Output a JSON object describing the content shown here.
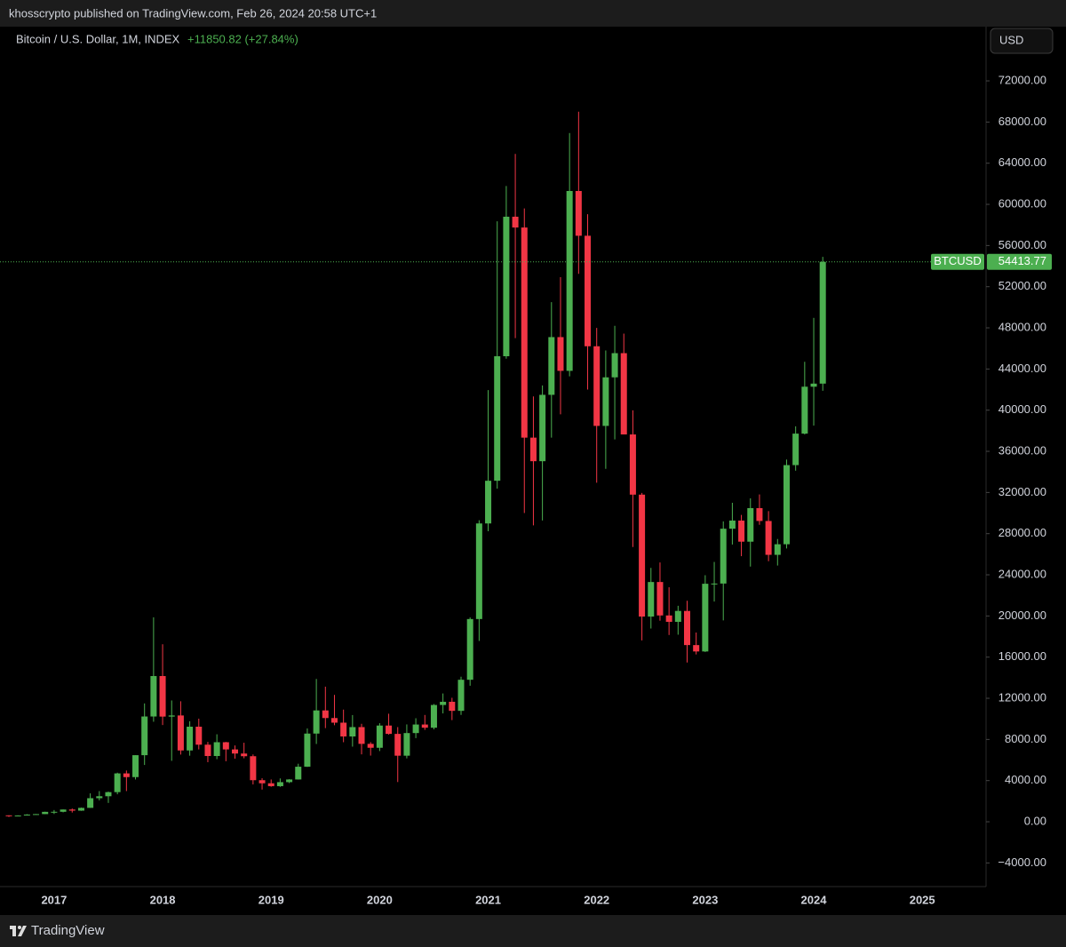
{
  "header": {
    "publisher_line": "khosscrypto published on TradingView.com, Feb 26, 2024 20:58 UTC+1"
  },
  "footer": {
    "brand": "TradingView"
  },
  "currency_button": "USD",
  "chart_data": {
    "type": "candlestick",
    "title": "Bitcoin / U.S. Dollar, 1M, INDEX",
    "change": "+11850.82 (+27.84%)",
    "symbol": "BTCUSD",
    "up_color": "#4caf50",
    "down_color": "#f23645",
    "categories": [
      null,
      null,
      null,
      null,
      null,
      "2017",
      null,
      null,
      null,
      null,
      null,
      null,
      null,
      null,
      null,
      null,
      null,
      "2018",
      null,
      null,
      null,
      null,
      null,
      null,
      null,
      null,
      null,
      null,
      null,
      "2019",
      null,
      null,
      null,
      null,
      null,
      null,
      null,
      null,
      null,
      null,
      null,
      "2020",
      null,
      null,
      null,
      null,
      null,
      null,
      null,
      null,
      null,
      null,
      null,
      "2021",
      null,
      null,
      null,
      null,
      null,
      null,
      null,
      null,
      null,
      null,
      null,
      "2022",
      null,
      null,
      null,
      null,
      null,
      null,
      null,
      null,
      null,
      null,
      null,
      "2023",
      null,
      null,
      null,
      null,
      null,
      null,
      null,
      null,
      null,
      null,
      null,
      "2024",
      null,
      null,
      null,
      null,
      null,
      null,
      null,
      null,
      null,
      null,
      null,
      "2025",
      null,
      null,
      null,
      null,
      null,
      null
    ],
    "open": [
      624,
      573,
      609,
      701,
      745,
      964,
      970,
      1190,
      1080,
      1350,
      2290,
      2480,
      2880,
      4700,
      4340,
      6470,
      10230,
      14160,
      10220,
      10330,
      6930,
      9240,
      7490,
      6390,
      7730,
      7030,
      6630,
      6370,
      4040,
      3740,
      3460,
      3850,
      4110,
      5350,
      8570,
      10820,
      10080,
      9630,
      8290,
      9200,
      7570,
      7190,
      9350,
      8540,
      6420,
      8620,
      9450,
      9140,
      11350,
      11660,
      10780,
      13800,
      19700,
      28990,
      33140,
      45240,
      58800,
      57750,
      37330,
      35040,
      41490,
      47100,
      43820,
      61300,
      56950,
      46210,
      38470,
      43190,
      45540,
      37640,
      31790,
      19940,
      23300,
      20050,
      19430,
      20490,
      17170,
      16550,
      23130,
      23150,
      28480,
      29270,
      27220,
      30480,
      29230,
      25940,
      26970,
      34660,
      37720,
      42280,
      42580,
      null,
      null,
      null,
      null,
      null,
      null,
      null,
      null,
      null,
      null,
      null,
      null,
      null,
      null,
      null,
      null,
      null
    ],
    "high": [
      626,
      628,
      737,
      753,
      979,
      1140,
      1200,
      1290,
      1380,
      2760,
      2980,
      2930,
      4770,
      4980,
      6470,
      11500,
      19870,
      17250,
      11790,
      11710,
      9770,
      10020,
      7760,
      8500,
      7760,
      7420,
      7680,
      6540,
      4230,
      4110,
      4210,
      4140,
      5640,
      9070,
      13880,
      13130,
      12330,
      10900,
      10370,
      9520,
      7740,
      9580,
      10500,
      9200,
      9460,
      10060,
      10380,
      11440,
      12470,
      12050,
      14100,
      19860,
      29300,
      41950,
      58350,
      61780,
      64900,
      59600,
      41330,
      42400,
      50500,
      52920,
      66930,
      69000,
      59040,
      47990,
      45800,
      48200,
      47440,
      39980,
      31960,
      24670,
      25200,
      22790,
      20990,
      21480,
      18390,
      23960,
      25250,
      29190,
      31000,
      29820,
      31430,
      31810,
      30190,
      27480,
      35200,
      38430,
      44700,
      48970,
      54900,
      null,
      null,
      null,
      null,
      null,
      null,
      null,
      null,
      null,
      null,
      null,
      null,
      null,
      null,
      null,
      null,
      null
    ],
    "low": [
      470,
      569,
      603,
      691,
      737,
      754,
      916,
      896,
      1060,
      1350,
      2080,
      1830,
      2670,
      2980,
      4110,
      5520,
      9720,
      9400,
      5920,
      6530,
      6420,
      7030,
      5790,
      6080,
      5880,
      6130,
      6170,
      3630,
      3130,
      3400,
      3390,
      3760,
      4100,
      5330,
      7560,
      9100,
      9380,
      7730,
      7300,
      6550,
      6430,
      6870,
      8470,
      3860,
      6160,
      8130,
      8930,
      8980,
      10530,
      9880,
      10380,
      13220,
      17570,
      28230,
      32380,
      45000,
      47000,
      30000,
      28800,
      29280,
      37330,
      39600,
      43290,
      53250,
      42000,
      32950,
      34300,
      37160,
      37700,
      26700,
      17620,
      18780,
      19540,
      18150,
      18180,
      15480,
      16260,
      16500,
      21400,
      19570,
      26940,
      25810,
      24800,
      28860,
      25320,
      24900,
      26560,
      34120,
      37640,
      38500,
      41880,
      null,
      null,
      null,
      null,
      null,
      null,
      null,
      null,
      null,
      null,
      null,
      null,
      null,
      null,
      null,
      null,
      null
    ],
    "close": [
      573,
      609,
      701,
      745,
      964,
      970,
      1190,
      1080,
      1350,
      2290,
      2480,
      2880,
      4700,
      4340,
      6470,
      10230,
      14160,
      10220,
      10330,
      6930,
      9240,
      7490,
      6390,
      7730,
      7030,
      6630,
      6370,
      4040,
      3740,
      3460,
      3850,
      4110,
      5350,
      8570,
      10820,
      10080,
      9630,
      8290,
      9200,
      7570,
      7190,
      9350,
      8540,
      6420,
      8620,
      9450,
      9140,
      11350,
      11660,
      10780,
      13800,
      19700,
      28990,
      33140,
      45240,
      58800,
      57750,
      37330,
      35040,
      41490,
      47100,
      43820,
      61300,
      56950,
      46210,
      38470,
      43190,
      45540,
      37640,
      31790,
      19940,
      23300,
      20050,
      19430,
      20490,
      17170,
      16550,
      23130,
      23150,
      28480,
      29270,
      27220,
      30480,
      29230,
      25940,
      26970,
      34660,
      37720,
      42280,
      42580,
      54413.77,
      null,
      null,
      null,
      null,
      null,
      null,
      null,
      null,
      null,
      null,
      null,
      null,
      null,
      null,
      null,
      null,
      null
    ],
    "ylim": [
      -6300,
      77270
    ],
    "yticks": [
      {
        "value": -4000,
        "label": "−4000.00"
      },
      {
        "value": 0,
        "label": "0.00"
      },
      {
        "value": 4000,
        "label": "4000.00"
      },
      {
        "value": 8000,
        "label": "8000.00"
      },
      {
        "value": 12000,
        "label": "12000.00"
      },
      {
        "value": 16000,
        "label": "16000.00"
      },
      {
        "value": 20000,
        "label": "20000.00"
      },
      {
        "value": 24000,
        "label": "24000.00"
      },
      {
        "value": 28000,
        "label": "28000.00"
      },
      {
        "value": 32000,
        "label": "32000.00"
      },
      {
        "value": 36000,
        "label": "36000.00"
      },
      {
        "value": 40000,
        "label": "40000.00"
      },
      {
        "value": 44000,
        "label": "44000.00"
      },
      {
        "value": 48000,
        "label": "48000.00"
      },
      {
        "value": 52000,
        "label": "52000.00"
      },
      {
        "value": 56000,
        "label": "56000.00"
      },
      {
        "value": 60000,
        "label": "60000.00"
      },
      {
        "value": 64000,
        "label": "64000.00"
      },
      {
        "value": 68000,
        "label": "68000.00"
      },
      {
        "value": 72000,
        "label": "72000.00"
      }
    ],
    "grid": false
  }
}
